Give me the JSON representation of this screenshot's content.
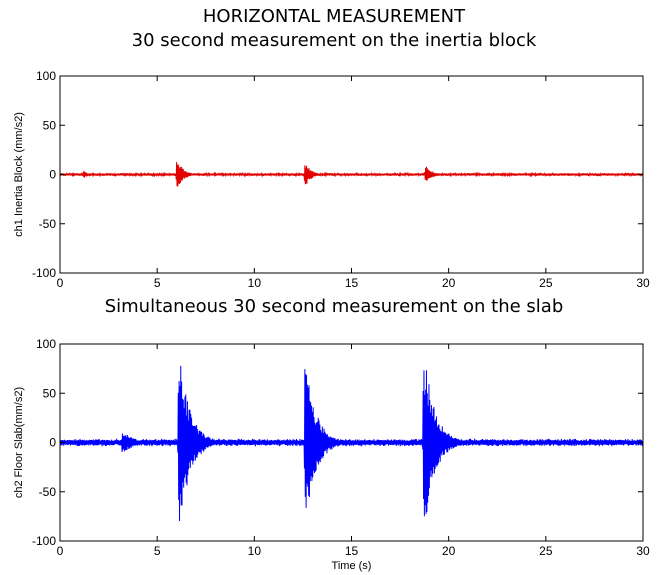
{
  "titles": {
    "main": "HORIZONTAL MEASUREMENT",
    "sub": "30 second measurement on the inertia block",
    "second": "Simultaneous 30 second measurement on the slab"
  },
  "chart_data": [
    {
      "type": "line",
      "title": "30 second measurement on the inertia block",
      "xlabel": "",
      "ylabel": "ch1 Inertia Block (mm/s2)",
      "xlim": [
        0,
        30
      ],
      "ylim": [
        -100,
        100
      ],
      "xticks": [
        0,
        5,
        10,
        15,
        20,
        25,
        30
      ],
      "yticks": [
        100,
        50,
        0,
        -50,
        -100
      ],
      "grid": false,
      "series": [
        {
          "color": "#e00000",
          "baseline_amplitude": 1.5,
          "events": [
            {
              "t": 1.2,
              "peak": 4,
              "decay": 0.25
            },
            {
              "t": 6.0,
              "peak": 18,
              "decay": 0.3
            },
            {
              "t": 12.6,
              "peak": 14,
              "decay": 0.3
            },
            {
              "t": 18.8,
              "peak": 10,
              "decay": 0.3
            }
          ]
        }
      ]
    },
    {
      "type": "line",
      "title": "Simultaneous 30 second measurement on the slab",
      "xlabel": "Time (s)",
      "ylabel": "ch2 Floor Slab(mm/s2)",
      "xlim": [
        0,
        30
      ],
      "ylim": [
        -100,
        100
      ],
      "xticks": [
        0,
        5,
        10,
        15,
        20,
        25,
        30
      ],
      "yticks": [
        100,
        50,
        0,
        -50,
        -100
      ],
      "grid": false,
      "series": [
        {
          "color": "#0000ff",
          "baseline_amplitude": 4,
          "events": [
            {
              "t": 3.2,
              "peak": 12,
              "decay": 0.6
            },
            {
              "t": 6.1,
              "peak": 97,
              "decay": 0.55
            },
            {
              "t": 12.6,
              "peak": 88,
              "decay": 0.55
            },
            {
              "t": 18.7,
              "peak": 100,
              "decay": 0.55
            }
          ]
        }
      ]
    }
  ]
}
